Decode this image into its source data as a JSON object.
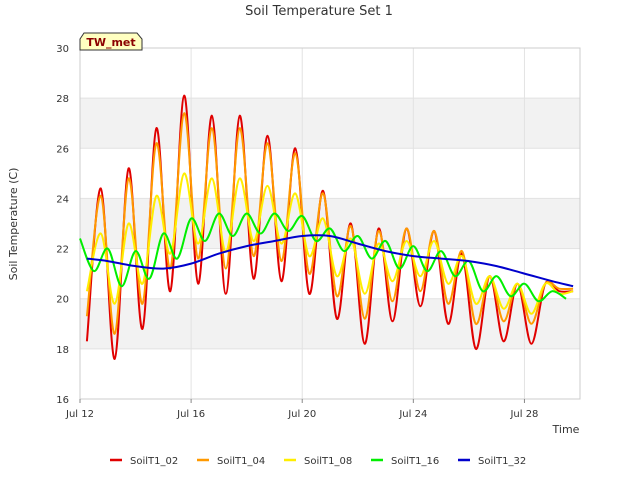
{
  "chart_data": {
    "type": "line",
    "title": "Soil Temperature Set 1",
    "xlabel": "Time",
    "ylabel": "Soil Temperature (C)",
    "badge": "TW_met",
    "xlim": [
      "2023-07-12",
      "2023-07-30"
    ],
    "ylim": [
      16,
      30
    ],
    "x_ticks": [
      {
        "date": "2023-07-12",
        "label": "Jul 12"
      },
      {
        "date": "2023-07-16",
        "label": "Jul 16"
      },
      {
        "date": "2023-07-20",
        "label": "Jul 20"
      },
      {
        "date": "2023-07-24",
        "label": "Jul 24"
      },
      {
        "date": "2023-07-28",
        "label": "Jul 28"
      }
    ],
    "y_ticks": [
      16,
      18,
      20,
      22,
      24,
      26,
      28,
      30
    ],
    "grid": true,
    "legend_position": "bottom",
    "series": [
      {
        "name": "SoilT1_02",
        "color": "#e00000",
        "x": [
          "2023-07-12T06:00",
          "2023-07-12T18:00",
          "2023-07-13T06:00",
          "2023-07-13T18:00",
          "2023-07-14T06:00",
          "2023-07-14T18:00",
          "2023-07-15T06:00",
          "2023-07-15T18:00",
          "2023-07-16T06:00",
          "2023-07-16T18:00",
          "2023-07-17T06:00",
          "2023-07-17T18:00",
          "2023-07-18T06:00",
          "2023-07-18T18:00",
          "2023-07-19T06:00",
          "2023-07-19T18:00",
          "2023-07-20T06:00",
          "2023-07-20T18:00",
          "2023-07-21T06:00",
          "2023-07-21T18:00",
          "2023-07-22T06:00",
          "2023-07-22T18:00",
          "2023-07-23T06:00",
          "2023-07-23T18:00",
          "2023-07-24T06:00",
          "2023-07-24T18:00",
          "2023-07-25T06:00",
          "2023-07-25T18:00",
          "2023-07-26T06:00",
          "2023-07-26T18:00",
          "2023-07-27T06:00",
          "2023-07-27T18:00",
          "2023-07-28T06:00",
          "2023-07-28T18:00",
          "2023-07-29T06:00",
          "2023-07-29T18:00"
        ],
        "values": [
          18.3,
          24.4,
          17.6,
          25.2,
          18.8,
          26.8,
          20.3,
          28.1,
          20.6,
          27.3,
          20.2,
          27.3,
          20.8,
          26.5,
          20.7,
          26.0,
          20.2,
          24.3,
          19.2,
          23.0,
          18.2,
          22.8,
          19.1,
          22.8,
          19.7,
          22.7,
          19.0,
          21.8,
          18.0,
          20.9,
          18.3,
          20.6,
          18.2,
          20.6,
          20.3,
          20.3
        ]
      },
      {
        "name": "SoilT1_04",
        "color": "#ff9900",
        "x": [
          "2023-07-12T06:00",
          "2023-07-12T18:00",
          "2023-07-13T06:00",
          "2023-07-13T18:00",
          "2023-07-14T06:00",
          "2023-07-14T18:00",
          "2023-07-15T06:00",
          "2023-07-15T18:00",
          "2023-07-16T06:00",
          "2023-07-16T18:00",
          "2023-07-17T06:00",
          "2023-07-17T18:00",
          "2023-07-18T06:00",
          "2023-07-18T18:00",
          "2023-07-19T06:00",
          "2023-07-19T18:00",
          "2023-07-20T06:00",
          "2023-07-20T18:00",
          "2023-07-21T06:00",
          "2023-07-21T18:00",
          "2023-07-22T06:00",
          "2023-07-22T18:00",
          "2023-07-23T06:00",
          "2023-07-23T18:00",
          "2023-07-24T06:00",
          "2023-07-24T18:00",
          "2023-07-25T06:00",
          "2023-07-25T18:00",
          "2023-07-26T06:00",
          "2023-07-26T18:00",
          "2023-07-27T06:00",
          "2023-07-27T18:00",
          "2023-07-28T06:00",
          "2023-07-28T18:00",
          "2023-07-29T06:00",
          "2023-07-29T18:00"
        ],
        "values": [
          19.3,
          24.1,
          18.6,
          24.8,
          19.8,
          26.2,
          21.2,
          27.4,
          21.6,
          26.8,
          21.2,
          26.8,
          21.7,
          26.2,
          21.5,
          25.8,
          21.0,
          24.2,
          20.1,
          22.9,
          19.2,
          22.7,
          19.9,
          22.8,
          20.3,
          22.7,
          19.8,
          21.9,
          19.0,
          20.9,
          19.1,
          20.6,
          19.0,
          20.6,
          20.4,
          20.4
        ]
      },
      {
        "name": "SoilT1_08",
        "color": "#ffee00",
        "x": [
          "2023-07-12T06:00",
          "2023-07-12T18:00",
          "2023-07-13T06:00",
          "2023-07-13T18:00",
          "2023-07-14T06:00",
          "2023-07-14T18:00",
          "2023-07-15T06:00",
          "2023-07-15T18:00",
          "2023-07-16T06:00",
          "2023-07-16T18:00",
          "2023-07-17T06:00",
          "2023-07-17T18:00",
          "2023-07-18T06:00",
          "2023-07-18T18:00",
          "2023-07-19T06:00",
          "2023-07-19T18:00",
          "2023-07-20T06:00",
          "2023-07-20T18:00",
          "2023-07-21T06:00",
          "2023-07-21T18:00",
          "2023-07-22T06:00",
          "2023-07-22T18:00",
          "2023-07-23T06:00",
          "2023-07-23T18:00",
          "2023-07-24T06:00",
          "2023-07-24T18:00",
          "2023-07-25T06:00",
          "2023-07-25T18:00",
          "2023-07-26T06:00",
          "2023-07-26T18:00",
          "2023-07-27T06:00",
          "2023-07-27T18:00",
          "2023-07-28T06:00",
          "2023-07-28T18:00",
          "2023-07-29T06:00",
          "2023-07-29T18:00"
        ],
        "values": [
          20.3,
          22.6,
          19.8,
          23.0,
          20.6,
          24.1,
          21.8,
          25.0,
          22.2,
          24.8,
          21.9,
          24.8,
          22.3,
          24.5,
          22.2,
          24.2,
          21.7,
          23.2,
          20.9,
          22.4,
          20.2,
          22.2,
          20.7,
          22.3,
          20.9,
          22.3,
          20.6,
          21.7,
          19.8,
          20.9,
          19.6,
          20.6,
          19.4,
          20.6,
          20.2,
          20.3
        ]
      },
      {
        "name": "SoilT1_16",
        "color": "#00ee00",
        "x": [
          "2023-07-12T00:00",
          "2023-07-12T12:00",
          "2023-07-13T00:00",
          "2023-07-13T12:00",
          "2023-07-14T00:00",
          "2023-07-14T12:00",
          "2023-07-15T00:00",
          "2023-07-15T12:00",
          "2023-07-16T00:00",
          "2023-07-16T12:00",
          "2023-07-17T00:00",
          "2023-07-17T12:00",
          "2023-07-18T00:00",
          "2023-07-18T12:00",
          "2023-07-19T00:00",
          "2023-07-19T12:00",
          "2023-07-20T00:00",
          "2023-07-20T12:00",
          "2023-07-21T00:00",
          "2023-07-21T12:00",
          "2023-07-22T00:00",
          "2023-07-22T12:00",
          "2023-07-23T00:00",
          "2023-07-23T12:00",
          "2023-07-24T00:00",
          "2023-07-24T12:00",
          "2023-07-25T00:00",
          "2023-07-25T12:00",
          "2023-07-26T00:00",
          "2023-07-26T12:00",
          "2023-07-27T00:00",
          "2023-07-27T12:00",
          "2023-07-28T00:00",
          "2023-07-28T12:00",
          "2023-07-29T00:00",
          "2023-07-29T12:00"
        ],
        "values": [
          22.4,
          21.1,
          22.0,
          20.5,
          21.9,
          20.8,
          22.6,
          21.6,
          23.2,
          22.3,
          23.4,
          22.5,
          23.4,
          22.6,
          23.4,
          22.7,
          23.3,
          22.3,
          22.8,
          21.9,
          22.5,
          21.6,
          22.3,
          21.2,
          22.1,
          21.1,
          21.9,
          20.9,
          21.5,
          20.3,
          20.9,
          20.1,
          20.6,
          19.9,
          20.3,
          20.0
        ]
      },
      {
        "name": "SoilT1_32",
        "color": "#0000cc",
        "x": [
          "2023-07-12T06:00",
          "2023-07-13T00:00",
          "2023-07-14T00:00",
          "2023-07-15T00:00",
          "2023-07-16T00:00",
          "2023-07-17T00:00",
          "2023-07-18T00:00",
          "2023-07-19T00:00",
          "2023-07-20T00:00",
          "2023-07-21T00:00",
          "2023-07-22T00:00",
          "2023-07-23T00:00",
          "2023-07-24T00:00",
          "2023-07-25T00:00",
          "2023-07-26T00:00",
          "2023-07-27T00:00",
          "2023-07-28T00:00",
          "2023-07-29T00:00",
          "2023-07-29T18:00"
        ],
        "values": [
          21.6,
          21.5,
          21.3,
          21.2,
          21.4,
          21.8,
          22.1,
          22.3,
          22.5,
          22.5,
          22.2,
          21.9,
          21.7,
          21.6,
          21.5,
          21.3,
          21.0,
          20.7,
          20.5
        ]
      }
    ]
  }
}
